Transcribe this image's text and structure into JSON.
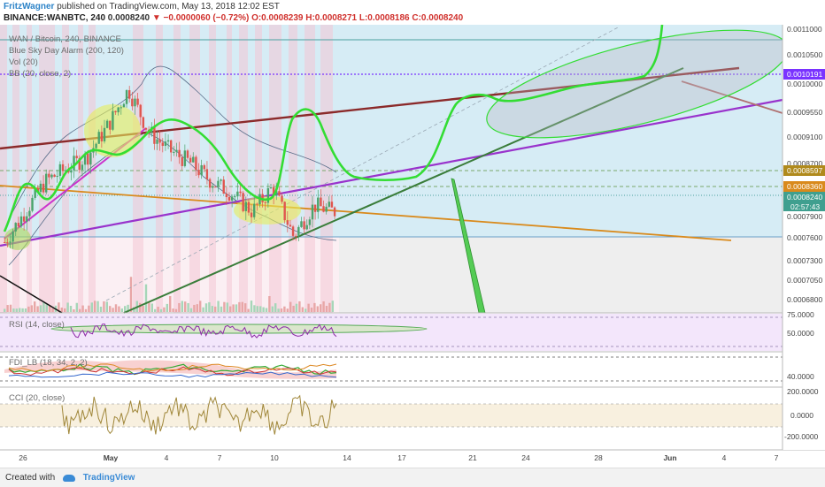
{
  "header": {
    "author": "FritzWagner",
    "published_text": "published on TradingView.com, May 13, 2018 12:02 EST",
    "symbol": "BINANCE:WANBTC, 240",
    "last": "0.0008240",
    "change": "−0.0000060 (−0.72%)",
    "open": "O:0.0008239",
    "high": "H:0.0008271",
    "low": "L:0.0008186",
    "close": "C:0.0008240"
  },
  "legend": {
    "main": "WAN / Bitcoin, 240, BINANCE",
    "indicator1": "Blue Sky Day Alarm (200, 120)",
    "indicator2": "Vol (20)",
    "indicator3": "BB (20, close, 2)",
    "rsi": "RSI (14, close)",
    "fdi": "FDI_LB (18, 34, 2, 2)",
    "cci": "CCI (20, close)"
  },
  "price_axis": {
    "ticks": [
      "0.0011000",
      "0.0010500",
      "0.0010000",
      "0.0009550",
      "0.0009100",
      "0.0008700",
      "0.0008300",
      "0.0007900",
      "0.0007600",
      "0.0007300",
      "0.0007050",
      "0.0006800"
    ],
    "tags": {
      "violet": "0.0010191",
      "gold": "0.0008597",
      "orange": "0.0008360",
      "last": "0.0008240",
      "countdown": "02:57:43"
    }
  },
  "rsi_axis": {
    "ticks": [
      "75.0000",
      "50.0000"
    ]
  },
  "fdi_axis": {
    "ticks": [
      "40.0000"
    ]
  },
  "cci_axis": {
    "ticks": [
      "200.0000",
      "0.0000",
      "-200.0000"
    ]
  },
  "time_axis": {
    "ticks": [
      "26",
      "May",
      "4",
      "7",
      "10",
      "14",
      "17",
      "21",
      "24",
      "28",
      "Jun",
      "4",
      "7"
    ]
  },
  "colors": {
    "bg_blue": "#d6ecf5",
    "pink_band": "#f4c6d3",
    "green_curve": "#33dd33",
    "violet_line": "#9933cc",
    "maroon_line": "#8b2a2a",
    "orange_line": "#d98a1c",
    "dark_green_line": "#3a7d3a",
    "magenta_line": "#cc33cc",
    "candle_up": "#4aa36b",
    "candle_down": "#e0564f"
  },
  "chart_data": {
    "type": "candlestick",
    "symbol": "WANBTC",
    "interval": "240",
    "x_range": [
      "Apr 24",
      "Jun 7"
    ],
    "y_range": [
      0.00066,
      0.00112
    ],
    "price_path": [
      {
        "date": "Apr 24",
        "close": 0.00077
      },
      {
        "date": "Apr 26",
        "close": 0.00082
      },
      {
        "date": "Apr 28",
        "close": 0.00087
      },
      {
        "date": "Apr 30",
        "close": 0.00089
      },
      {
        "date": "May 1",
        "close": 0.00091
      },
      {
        "date": "May 2",
        "close": 0.00096
      },
      {
        "date": "May 3",
        "close": 0.00102
      },
      {
        "date": "May 4",
        "close": 0.00095
      },
      {
        "date": "May 5",
        "close": 0.00092
      },
      {
        "date": "May 6",
        "close": 0.0009
      },
      {
        "date": "May 7",
        "close": 0.00087
      },
      {
        "date": "May 8",
        "close": 0.00085
      },
      {
        "date": "May 9",
        "close": 0.00082
      },
      {
        "date": "May 10",
        "close": 0.00086
      },
      {
        "date": "May 11",
        "close": 0.00078
      },
      {
        "date": "May 12",
        "close": 0.00083
      },
      {
        "date": "May 13",
        "close": 0.00082
      }
    ],
    "levels": {
      "violet": 0.0010191,
      "gold": 0.0008597,
      "orange": 0.000836,
      "last": 0.000824
    }
  }
}
